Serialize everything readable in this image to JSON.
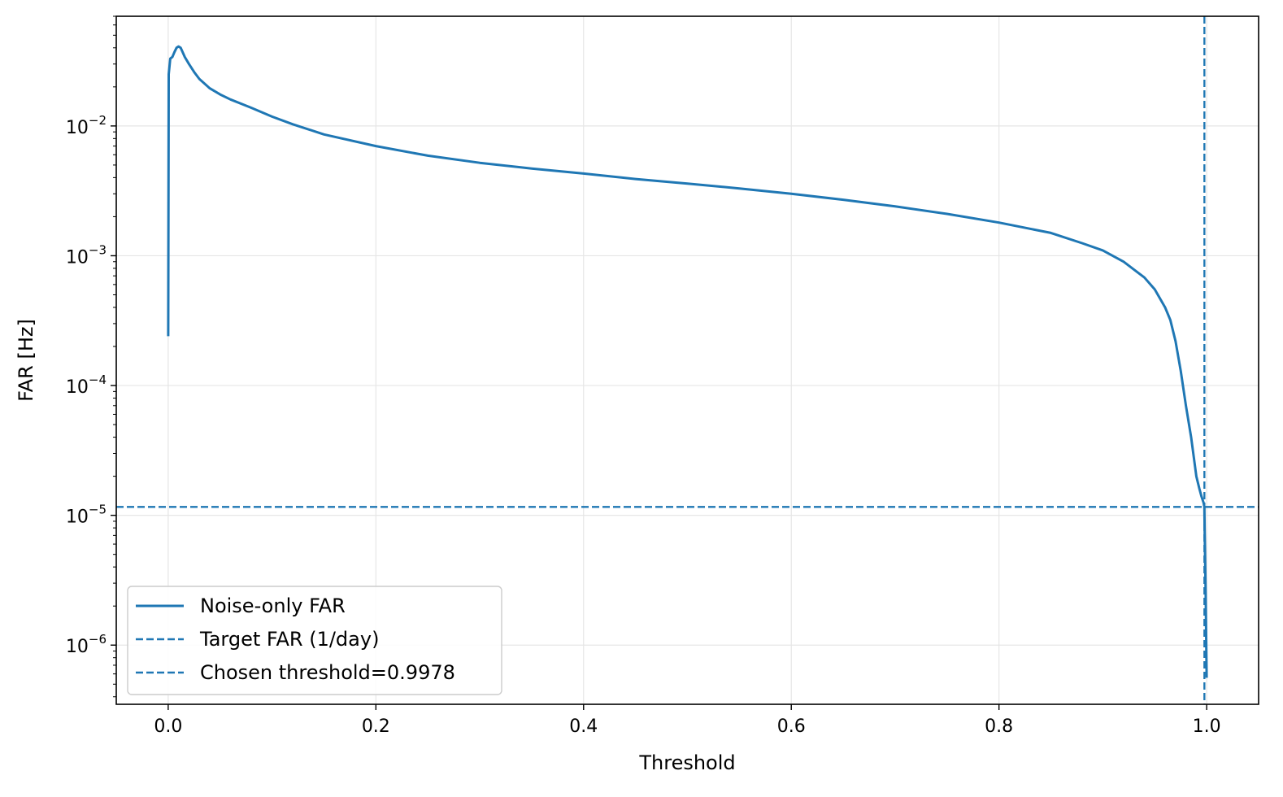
{
  "chart_data": {
    "type": "line",
    "xlabel": "Threshold",
    "ylabel": "FAR [Hz]",
    "yscale": "log",
    "xlim": [
      -0.05,
      1.05
    ],
    "ylim": [
      3.5e-07,
      0.07
    ],
    "grid": true,
    "legend_position": "lower-left",
    "x_ticks": [
      {
        "value": 0.0,
        "label": "0.0"
      },
      {
        "value": 0.2,
        "label": "0.2"
      },
      {
        "value": 0.4,
        "label": "0.4"
      },
      {
        "value": 0.6,
        "label": "0.6"
      },
      {
        "value": 0.8,
        "label": "0.8"
      },
      {
        "value": 1.0,
        "label": "1.0"
      }
    ],
    "y_ticks": [
      {
        "value": 1e-06,
        "base": "10",
        "exp": "−6"
      },
      {
        "value": 1e-05,
        "base": "10",
        "exp": "−5"
      },
      {
        "value": 0.0001,
        "base": "10",
        "exp": "−4"
      },
      {
        "value": 0.001,
        "base": "10",
        "exp": "−3"
      },
      {
        "value": 0.01,
        "base": "10",
        "exp": "−2"
      }
    ],
    "series": [
      {
        "name": "Noise-only FAR",
        "color": "#1f77b4",
        "style": "solid",
        "x": [
          0.0,
          0.0005,
          0.002,
          0.004,
          0.006,
          0.008,
          0.01,
          0.012,
          0.014,
          0.016,
          0.02,
          0.025,
          0.03,
          0.04,
          0.05,
          0.06,
          0.08,
          0.1,
          0.12,
          0.15,
          0.2,
          0.25,
          0.3,
          0.35,
          0.4,
          0.45,
          0.5,
          0.55,
          0.6,
          0.65,
          0.7,
          0.75,
          0.8,
          0.85,
          0.88,
          0.9,
          0.92,
          0.94,
          0.95,
          0.96,
          0.965,
          0.97,
          0.975,
          0.98,
          0.985,
          0.99,
          0.993,
          0.995,
          0.997,
          0.9978,
          0.998,
          0.999,
          1.0
        ],
        "y": [
          0.00024,
          0.025,
          0.033,
          0.034,
          0.037,
          0.04,
          0.041,
          0.04,
          0.037,
          0.034,
          0.03,
          0.026,
          0.023,
          0.0195,
          0.0175,
          0.016,
          0.0138,
          0.0118,
          0.0103,
          0.0086,
          0.007,
          0.0059,
          0.0052,
          0.0047,
          0.0043,
          0.0039,
          0.0036,
          0.0033,
          0.003,
          0.0027,
          0.0024,
          0.0021,
          0.0018,
          0.0015,
          0.00125,
          0.0011,
          0.0009,
          0.00068,
          0.00055,
          0.0004,
          0.00032,
          0.00022,
          0.00013,
          7e-05,
          4e-05,
          2e-05,
          1.6e-05,
          1.4e-05,
          1.25e-05,
          1.16e-05,
          8e-06,
          2.5e-06,
          5.6e-07
        ]
      },
      {
        "name": "Target FAR (1/day)",
        "color": "#1f77b4",
        "style": "dashed",
        "orientation": "horizontal",
        "y": 1.16e-05
      },
      {
        "name": "Chosen threshold=0.9978",
        "color": "#1f77b4",
        "style": "dashed",
        "orientation": "vertical",
        "x": 0.9978
      }
    ]
  }
}
